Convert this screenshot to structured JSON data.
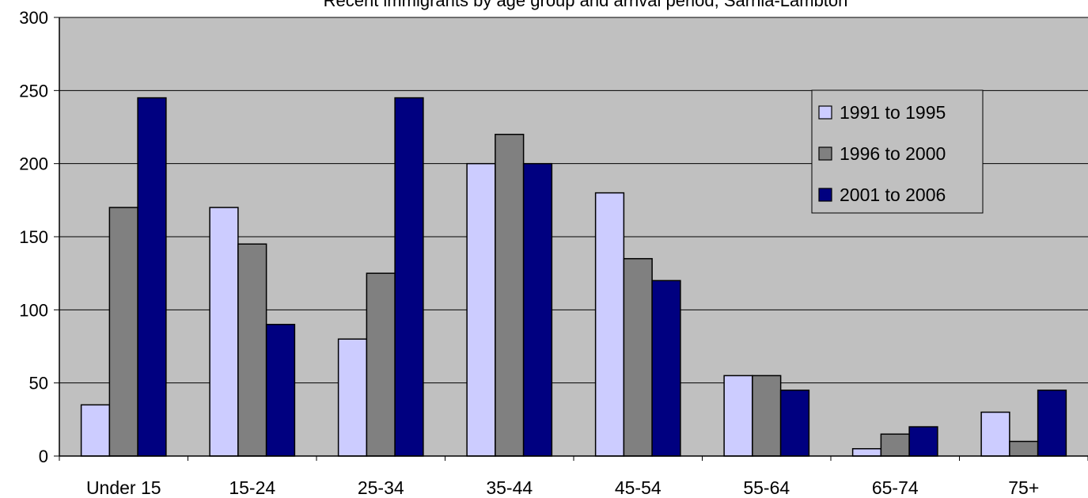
{
  "chart_data": {
    "type": "bar",
    "title": "Recent immigrants by age group and arrival period, Sarnia-Lambton",
    "xlabel": "",
    "ylabel": "",
    "categories": [
      "Under 15",
      "15-24",
      "25-34",
      "35-44",
      "45-54",
      "55-64",
      "65-74",
      "75+"
    ],
    "series": [
      {
        "name": "1991 to 1995",
        "color": "#ccccff",
        "values": [
          35,
          170,
          80,
          200,
          180,
          55,
          5,
          30
        ]
      },
      {
        "name": "1996 to 2000",
        "color": "#808080",
        "values": [
          170,
          145,
          125,
          220,
          135,
          55,
          15,
          10
        ]
      },
      {
        "name": "2001 to 2006",
        "color": "#000080",
        "values": [
          245,
          90,
          245,
          200,
          120,
          45,
          20,
          45
        ]
      }
    ],
    "ylim": [
      0,
      300
    ],
    "yticks": [
      0,
      50,
      100,
      150,
      200,
      250,
      300
    ],
    "grid": true,
    "legend_position": "top-right",
    "plot_background": "#c0c0c0"
  }
}
